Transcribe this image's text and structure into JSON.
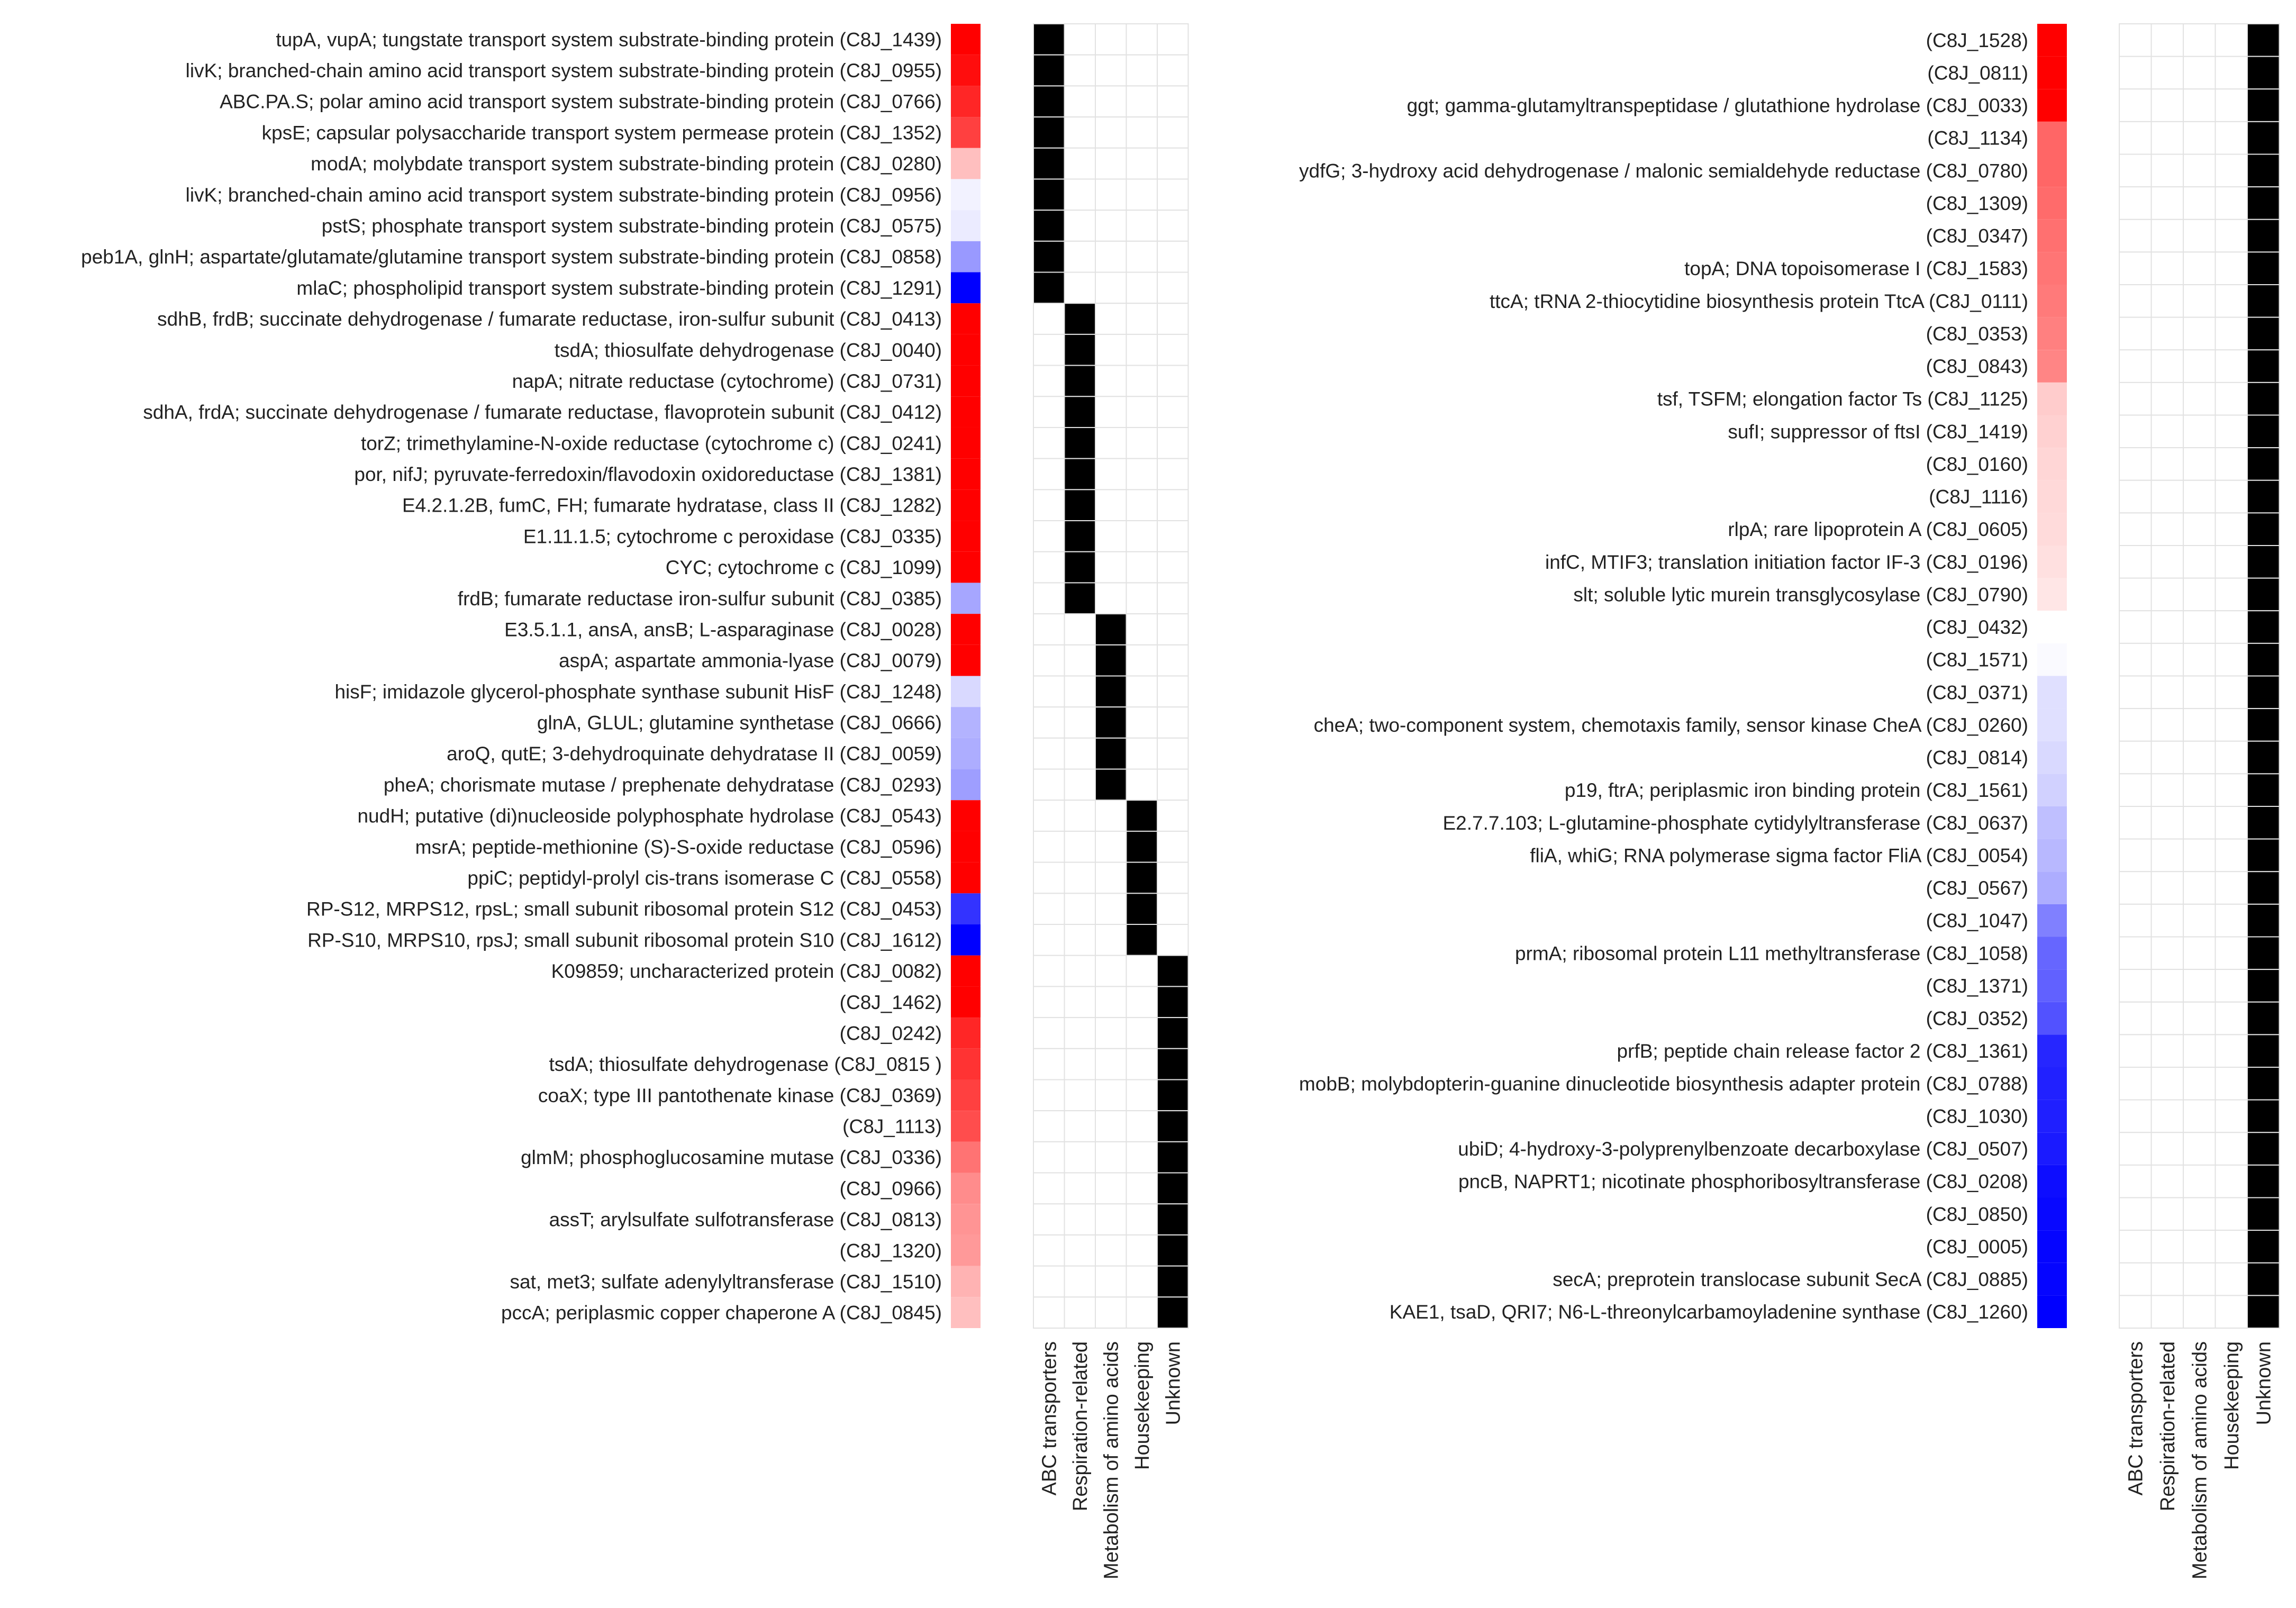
{
  "chart_data": [
    {
      "type": "heatmap",
      "title": "",
      "color_scale": {
        "positive": "#ff0000",
        "neutral": "#ffffff",
        "negative": "#0000ff"
      },
      "values_note": "relative colour intensity, red = +1, blue = -1 (estimated from shading)",
      "categories": [
        "ABC transporters",
        "Respiration-related",
        "Metabolism of amino acids",
        "Housekeeping",
        "Unknown"
      ],
      "rows": [
        {
          "label": "tupA, vupA; tungstate transport system substrate-binding protein (C8J_1439)",
          "value": 1.0,
          "category": 0
        },
        {
          "label": "livK; branched-chain amino acid transport system substrate-binding protein (C8J_0955)",
          "value": 0.95,
          "category": 0
        },
        {
          "label": "ABC.PA.S; polar amino acid transport system substrate-binding protein (C8J_0766)",
          "value": 0.85,
          "category": 0
        },
        {
          "label": "kpsE; capsular polysaccharide transport system permease protein (C8J_1352)",
          "value": 0.75,
          "category": 0
        },
        {
          "label": "modA; molybdate transport system substrate-binding protein (C8J_0280)",
          "value": 0.25,
          "category": 0
        },
        {
          "label": "livK; branched-chain amino acid transport system substrate-binding protein (C8J_0956)",
          "value": -0.05,
          "category": 0
        },
        {
          "label": "pstS; phosphate transport system substrate-binding protein (C8J_0575)",
          "value": -0.08,
          "category": 0
        },
        {
          "label": "peb1A, glnH; aspartate/glutamate/glutamine transport system substrate-binding protein (C8J_0858)",
          "value": -0.4,
          "category": 0
        },
        {
          "label": "mlaC; phospholipid transport system substrate-binding protein (C8J_1291)",
          "value": -1.0,
          "category": 0
        },
        {
          "label": "sdhB, frdB; succinate dehydrogenase / fumarate reductase, iron-sulfur subunit  (C8J_0413)",
          "value": 1.0,
          "category": 1
        },
        {
          "label": "tsdA; thiosulfate dehydrogenase  (C8J_0040)",
          "value": 1.0,
          "category": 1
        },
        {
          "label": "napA; nitrate reductase (cytochrome)  (C8J_0731)",
          "value": 1.0,
          "category": 1
        },
        {
          "label": "sdhA, frdA; succinate dehydrogenase / fumarate reductase, flavoprotein subunit  (C8J_0412)",
          "value": 1.0,
          "category": 1
        },
        {
          "label": "torZ; trimethylamine-N-oxide reductase (cytochrome c)  (C8J_0241)",
          "value": 1.0,
          "category": 1
        },
        {
          "label": "por, nifJ; pyruvate-ferredoxin/flavodoxin oxidoreductase  (C8J_1381)",
          "value": 1.0,
          "category": 1
        },
        {
          "label": "E4.2.1.2B, fumC, FH; fumarate hydratase, class II  (C8J_1282)",
          "value": 1.0,
          "category": 1
        },
        {
          "label": "E1.11.1.5; cytochrome c peroxidase  (C8J_0335)",
          "value": 1.0,
          "category": 1
        },
        {
          "label": "CYC; cytochrome c (C8J_1099)",
          "value": 1.0,
          "category": 1
        },
        {
          "label": "frdB; fumarate reductase iron-sulfur subunit  (C8J_0385)",
          "value": -0.35,
          "category": 1
        },
        {
          "label": "E3.5.1.1, ansA, ansB; L-asparaginase  (C8J_0028)",
          "value": 1.0,
          "category": 2
        },
        {
          "label": "aspA; aspartate ammonia-lyase  (C8J_0079)",
          "value": 1.0,
          "category": 2
        },
        {
          "label": "hisF; imidazole glycerol-phosphate synthase subunit HisF  (C8J_1248)",
          "value": -0.15,
          "category": 2
        },
        {
          "label": "glnA, GLUL; glutamine synthetase  (C8J_0666)",
          "value": -0.3,
          "category": 2
        },
        {
          "label": "aroQ, qutE; 3-dehydroquinate dehydratase II  (C8J_0059)",
          "value": -0.32,
          "category": 2
        },
        {
          "label": "pheA; chorismate mutase / prephenate dehydratase  (C8J_0293)",
          "value": -0.38,
          "category": 2
        },
        {
          "label": "nudH; putative (di)nucleoside polyphosphate hydrolase  (C8J_0543)",
          "value": 1.0,
          "category": 3
        },
        {
          "label": "msrA; peptide-methionine (S)-S-oxide reductase  (C8J_0596)",
          "value": 1.0,
          "category": 3
        },
        {
          "label": "ppiC; peptidyl-prolyl cis-trans isomerase C  (C8J_0558)",
          "value": 1.0,
          "category": 3
        },
        {
          "label": "RP-S12, MRPS12, rpsL; small subunit ribosomal protein S12 (C8J_0453)",
          "value": -0.8,
          "category": 3
        },
        {
          "label": "RP-S10, MRPS10, rpsJ; small subunit ribosomal protein S10 (C8J_1612)",
          "value": -1.0,
          "category": 3
        },
        {
          "label": "K09859; uncharacterized protein (C8J_0082)",
          "value": 1.0,
          "category": 4
        },
        {
          "label": "(C8J_1462)",
          "value": 1.0,
          "category": 4
        },
        {
          "label": "(C8J_0242)",
          "value": 0.85,
          "category": 4
        },
        {
          "label": "tsdA; thiosulfate dehydrogenase  (C8J_0815 )",
          "value": 0.8,
          "category": 4
        },
        {
          "label": "coaX; type III pantothenate kinase  (C8J_0369)",
          "value": 0.75,
          "category": 4
        },
        {
          "label": "(C8J_1113)",
          "value": 0.7,
          "category": 4
        },
        {
          "label": "glmM; phosphoglucosamine mutase  (C8J_0336)",
          "value": 0.55,
          "category": 4
        },
        {
          "label": "(C8J_0966)",
          "value": 0.45,
          "category": 4
        },
        {
          "label": "assT; arylsulfate sulfotransferase  (C8J_0813)",
          "value": 0.42,
          "category": 4
        },
        {
          "label": "(C8J_1320)",
          "value": 0.4,
          "category": 4
        },
        {
          "label": "sat, met3; sulfate adenylyltransferase  (C8J_1510)",
          "value": 0.3,
          "category": 4
        },
        {
          "label": "pccA; periplasmic copper chaperone A (C8J_0845)",
          "value": 0.25,
          "category": 4
        }
      ]
    },
    {
      "type": "heatmap",
      "title": "",
      "color_scale": {
        "positive": "#ff0000",
        "neutral": "#ffffff",
        "negative": "#0000ff"
      },
      "values_note": "relative colour intensity, red = +1, blue = -1 (estimated from shading)",
      "categories": [
        "ABC transporters",
        "Respiration-related",
        "Metabolism of amino acids",
        "Housekeeping",
        "Unknown"
      ],
      "rows": [
        {
          "label": "(C8J_1528)",
          "value": 1.0,
          "category": 4
        },
        {
          "label": "(C8J_0811)",
          "value": 1.0,
          "category": 4
        },
        {
          "label": "ggt; gamma-glutamyltranspeptidase / glutathione hydrolase  (C8J_0033)",
          "value": 1.0,
          "category": 4
        },
        {
          "label": "(C8J_1134)",
          "value": 0.6,
          "category": 4
        },
        {
          "label": "ydfG; 3-hydroxy acid dehydrogenase / malonic semialdehyde reductase  (C8J_0780)",
          "value": 0.6,
          "category": 4
        },
        {
          "label": "(C8J_1309)",
          "value": 0.58,
          "category": 4
        },
        {
          "label": "(C8J_0347)",
          "value": 0.56,
          "category": 4
        },
        {
          "label": "topA; DNA topoisomerase I  (C8J_1583)",
          "value": 0.54,
          "category": 4
        },
        {
          "label": "ttcA; tRNA 2-thiocytidine biosynthesis protein TtcA (C8J_0111)",
          "value": 0.52,
          "category": 4
        },
        {
          "label": "(C8J_0353)",
          "value": 0.5,
          "category": 4
        },
        {
          "label": "(C8J_0843)",
          "value": 0.48,
          "category": 4
        },
        {
          "label": "tsf, TSFM; elongation factor Ts (C8J_1125)",
          "value": 0.2,
          "category": 4
        },
        {
          "label": "sufI; suppressor of ftsI (C8J_1419)",
          "value": 0.18,
          "category": 4
        },
        {
          "label": "(C8J_0160)",
          "value": 0.16,
          "category": 4
        },
        {
          "label": "(C8J_1116)",
          "value": 0.15,
          "category": 4
        },
        {
          "label": "rlpA; rare lipoprotein A (C8J_0605)",
          "value": 0.14,
          "category": 4
        },
        {
          "label": "infC, MTIF3; translation initiation factor IF-3 (C8J_0196)",
          "value": 0.12,
          "category": 4
        },
        {
          "label": "slt; soluble lytic murein transglycosylase  (C8J_0790)",
          "value": 0.1,
          "category": 4
        },
        {
          "label": "(C8J_0432)",
          "value": 0.0,
          "category": 4
        },
        {
          "label": "(C8J_1571)",
          "value": -0.02,
          "category": 4
        },
        {
          "label": "(C8J_0371)",
          "value": -0.12,
          "category": 4
        },
        {
          "label": "cheA; two-component system, chemotaxis family, sensor kinase CheA  (C8J_0260)",
          "value": -0.12,
          "category": 4
        },
        {
          "label": "(C8J_0814)",
          "value": -0.15,
          "category": 4
        },
        {
          "label": "p19, ftrA; periplasmic iron binding protein  (C8J_1561)",
          "value": -0.18,
          "category": 4
        },
        {
          "label": "E2.7.7.103; L-glutamine-phosphate cytidylyltransferase  (C8J_0637)",
          "value": -0.25,
          "category": 4
        },
        {
          "label": "fliA, whiG; RNA polymerase sigma factor FliA (C8J_0054)",
          "value": -0.28,
          "category": 4
        },
        {
          "label": "(C8J_0567)",
          "value": -0.32,
          "category": 4
        },
        {
          "label": "(C8J_1047)",
          "value": -0.5,
          "category": 4
        },
        {
          "label": "prmA; ribosomal protein L11 methyltransferase  (C8J_1058)",
          "value": -0.6,
          "category": 4
        },
        {
          "label": "(C8J_1371)",
          "value": -0.62,
          "category": 4
        },
        {
          "label": "(C8J_0352)",
          "value": -0.68,
          "category": 4
        },
        {
          "label": "prfB; peptide chain release factor 2 (C8J_1361)",
          "value": -0.85,
          "category": 4
        },
        {
          "label": "mobB; molybdopterin-guanine dinucleotide biosynthesis adapter protein (C8J_0788)",
          "value": -0.87,
          "category": 4
        },
        {
          "label": "(C8J_1030)",
          "value": -0.88,
          "category": 4
        },
        {
          "label": "ubiD; 4-hydroxy-3-polyprenylbenzoate decarboxylase  (C8J_0507)",
          "value": -0.9,
          "category": 4
        },
        {
          "label": "pncB, NAPRT1; nicotinate phosphoribosyltransferase  (C8J_0208)",
          "value": -0.95,
          "category": 4
        },
        {
          "label": "(C8J_0850)",
          "value": -0.97,
          "category": 4
        },
        {
          "label": "(C8J_0005)",
          "value": -0.98,
          "category": 4
        },
        {
          "label": "secA; preprotein translocase subunit SecA  (C8J_0885)",
          "value": -0.98,
          "category": 4
        },
        {
          "label": "KAE1, tsaD, QRI7; N6-L-threonylcarbamoyladenine synthase  (C8J_1260)",
          "value": -1.0,
          "category": 4
        }
      ]
    }
  ]
}
